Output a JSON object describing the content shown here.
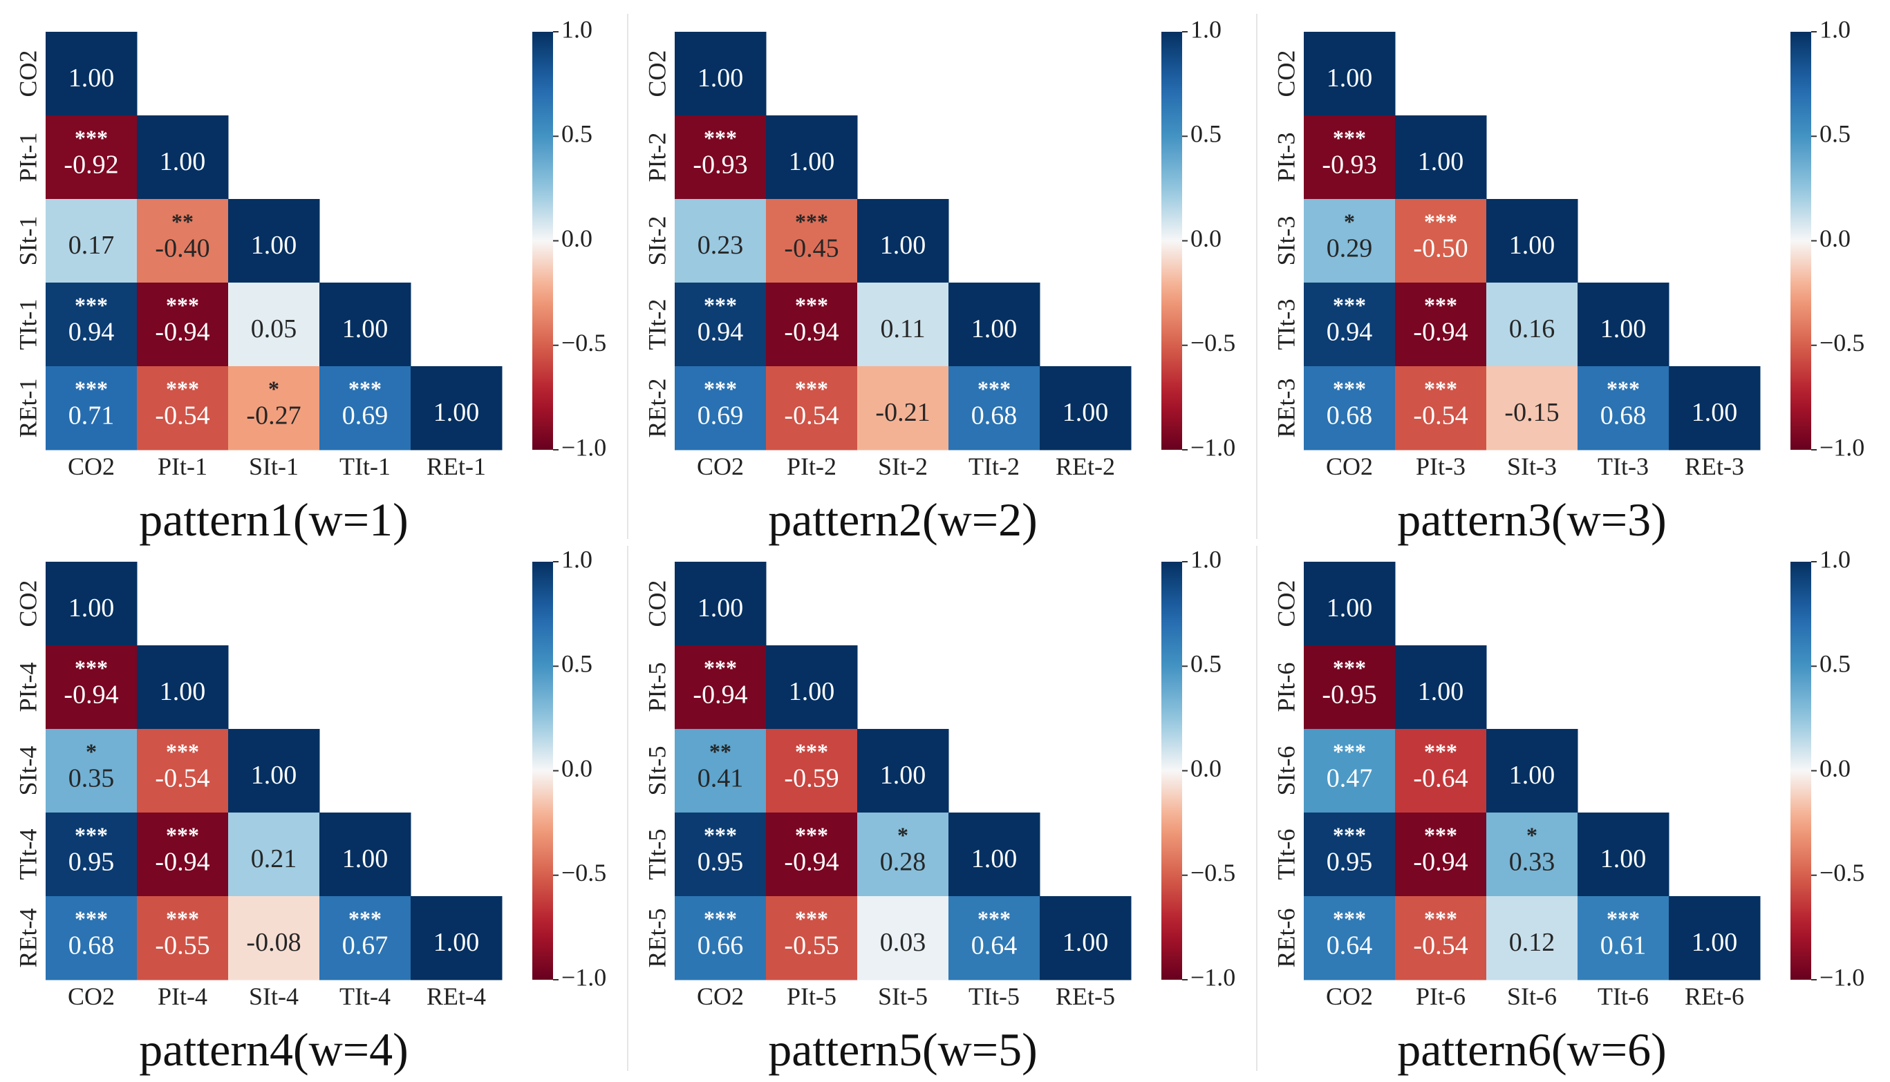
{
  "figure": {
    "colorbar": {
      "ticks": [
        1.0,
        0.5,
        0.0,
        -0.5,
        -1.0
      ],
      "tick_labels": [
        "1.0",
        "0.5",
        "0.0",
        "−0.5",
        "−1.0"
      ],
      "colormap": "RdBu",
      "colors": {
        "neg_extreme": "#67001f",
        "neg_mid": "#d6604d",
        "neutral": "#f7f7f7",
        "pos_mid": "#4393c3",
        "pos_extreme": "#053061"
      }
    }
  },
  "chart_data": [
    {
      "type": "heatmap",
      "title": "pattern1(w=1)",
      "labels": [
        "CO2",
        "PIt-1",
        "SIt-1",
        "TIt-1",
        "REt-1"
      ],
      "values": [
        [
          1.0
        ],
        [
          -0.92,
          1.0
        ],
        [
          0.17,
          -0.4,
          1.0
        ],
        [
          0.94,
          -0.94,
          0.05,
          1.0
        ],
        [
          0.71,
          -0.54,
          -0.27,
          0.69,
          1.0
        ]
      ],
      "value_labels": [
        [
          "1.00"
        ],
        [
          "-0.92",
          "1.00"
        ],
        [
          "0.17",
          "-0.40",
          "1.00"
        ],
        [
          "0.94",
          "-0.94",
          "0.05",
          "1.00"
        ],
        [
          "0.71",
          "-0.54",
          "-0.27",
          "0.69",
          "1.00"
        ]
      ],
      "stars": [
        [
          ""
        ],
        [
          "***",
          ""
        ],
        [
          "",
          "**",
          ""
        ],
        [
          "***",
          "***",
          "",
          ""
        ],
        [
          "***",
          "***",
          "*",
          "***",
          ""
        ]
      ],
      "vmin": -1.0,
      "vmax": 1.0
    },
    {
      "type": "heatmap",
      "title": "pattern2(w=2)",
      "labels": [
        "CO2",
        "PIt-2",
        "SIt-2",
        "TIt-2",
        "REt-2"
      ],
      "values": [
        [
          1.0
        ],
        [
          -0.93,
          1.0
        ],
        [
          0.23,
          -0.45,
          1.0
        ],
        [
          0.94,
          -0.94,
          0.11,
          1.0
        ],
        [
          0.69,
          -0.54,
          -0.21,
          0.68,
          1.0
        ]
      ],
      "value_labels": [
        [
          "1.00"
        ],
        [
          "-0.93",
          "1.00"
        ],
        [
          "0.23",
          "-0.45",
          "1.00"
        ],
        [
          "0.94",
          "-0.94",
          "0.11",
          "1.00"
        ],
        [
          "0.69",
          "-0.54",
          "-0.21",
          "0.68",
          "1.00"
        ]
      ],
      "stars": [
        [
          ""
        ],
        [
          "***",
          ""
        ],
        [
          "",
          "***",
          ""
        ],
        [
          "***",
          "***",
          "",
          ""
        ],
        [
          "***",
          "***",
          "",
          "***",
          ""
        ]
      ],
      "vmin": -1.0,
      "vmax": 1.0
    },
    {
      "type": "heatmap",
      "title": "pattern3(w=3)",
      "labels": [
        "CO2",
        "PIt-3",
        "SIt-3",
        "TIt-3",
        "REt-3"
      ],
      "values": [
        [
          1.0
        ],
        [
          -0.93,
          1.0
        ],
        [
          0.29,
          -0.5,
          1.0
        ],
        [
          0.94,
          -0.94,
          0.16,
          1.0
        ],
        [
          0.68,
          -0.54,
          -0.15,
          0.68,
          1.0
        ]
      ],
      "value_labels": [
        [
          "1.00"
        ],
        [
          "-0.93",
          "1.00"
        ],
        [
          "0.29",
          "-0.50",
          "1.00"
        ],
        [
          "0.94",
          "-0.94",
          "0.16",
          "1.00"
        ],
        [
          "0.68",
          "-0.54",
          "-0.15",
          "0.68",
          "1.00"
        ]
      ],
      "stars": [
        [
          ""
        ],
        [
          "***",
          ""
        ],
        [
          "*",
          "***",
          ""
        ],
        [
          "***",
          "***",
          "",
          ""
        ],
        [
          "***",
          "***",
          "",
          "***",
          ""
        ]
      ],
      "vmin": -1.0,
      "vmax": 1.0
    },
    {
      "type": "heatmap",
      "title": "pattern4(w=4)",
      "labels": [
        "CO2",
        "PIt-4",
        "SIt-4",
        "TIt-4",
        "REt-4"
      ],
      "values": [
        [
          1.0
        ],
        [
          -0.94,
          1.0
        ],
        [
          0.35,
          -0.54,
          1.0
        ],
        [
          0.95,
          -0.94,
          0.21,
          1.0
        ],
        [
          0.68,
          -0.55,
          -0.08,
          0.67,
          1.0
        ]
      ],
      "value_labels": [
        [
          "1.00"
        ],
        [
          "-0.94",
          "1.00"
        ],
        [
          "0.35",
          "-0.54",
          "1.00"
        ],
        [
          "0.95",
          "-0.94",
          "0.21",
          "1.00"
        ],
        [
          "0.68",
          "-0.55",
          "-0.08",
          "0.67",
          "1.00"
        ]
      ],
      "stars": [
        [
          ""
        ],
        [
          "***",
          ""
        ],
        [
          "*",
          "***",
          ""
        ],
        [
          "***",
          "***",
          "",
          ""
        ],
        [
          "***",
          "***",
          "",
          "***",
          ""
        ]
      ],
      "vmin": -1.0,
      "vmax": 1.0
    },
    {
      "type": "heatmap",
      "title": "pattern5(w=5)",
      "labels": [
        "CO2",
        "PIt-5",
        "SIt-5",
        "TIt-5",
        "REt-5"
      ],
      "values": [
        [
          1.0
        ],
        [
          -0.94,
          1.0
        ],
        [
          0.41,
          -0.59,
          1.0
        ],
        [
          0.95,
          -0.94,
          0.28,
          1.0
        ],
        [
          0.66,
          -0.55,
          0.03,
          0.64,
          1.0
        ]
      ],
      "value_labels": [
        [
          "1.00"
        ],
        [
          "-0.94",
          "1.00"
        ],
        [
          "0.41",
          "-0.59",
          "1.00"
        ],
        [
          "0.95",
          "-0.94",
          "0.28",
          "1.00"
        ],
        [
          "0.66",
          "-0.55",
          "0.03",
          "0.64",
          "1.00"
        ]
      ],
      "stars": [
        [
          ""
        ],
        [
          "***",
          ""
        ],
        [
          "**",
          "***",
          ""
        ],
        [
          "***",
          "***",
          "*",
          ""
        ],
        [
          "***",
          "***",
          "",
          "***",
          ""
        ]
      ],
      "vmin": -1.0,
      "vmax": 1.0
    },
    {
      "type": "heatmap",
      "title": "pattern6(w=6)",
      "labels": [
        "CO2",
        "PIt-6",
        "SIt-6",
        "TIt-6",
        "REt-6"
      ],
      "values": [
        [
          1.0
        ],
        [
          -0.95,
          1.0
        ],
        [
          0.47,
          -0.64,
          1.0
        ],
        [
          0.95,
          -0.94,
          0.33,
          1.0
        ],
        [
          0.64,
          -0.54,
          0.12,
          0.61,
          1.0
        ]
      ],
      "value_labels": [
        [
          "1.00"
        ],
        [
          "-0.95",
          "1.00"
        ],
        [
          "0.47",
          "-0.64",
          "1.00"
        ],
        [
          "0.95",
          "-0.94",
          "0.33",
          "1.00"
        ],
        [
          "0.64",
          "-0.54",
          "0.12",
          "0.61",
          "1.00"
        ]
      ],
      "stars": [
        [
          ""
        ],
        [
          "***",
          ""
        ],
        [
          "***",
          "***",
          ""
        ],
        [
          "***",
          "***",
          "*",
          ""
        ],
        [
          "***",
          "***",
          "",
          "***",
          ""
        ]
      ],
      "vmin": -1.0,
      "vmax": 1.0
    }
  ]
}
